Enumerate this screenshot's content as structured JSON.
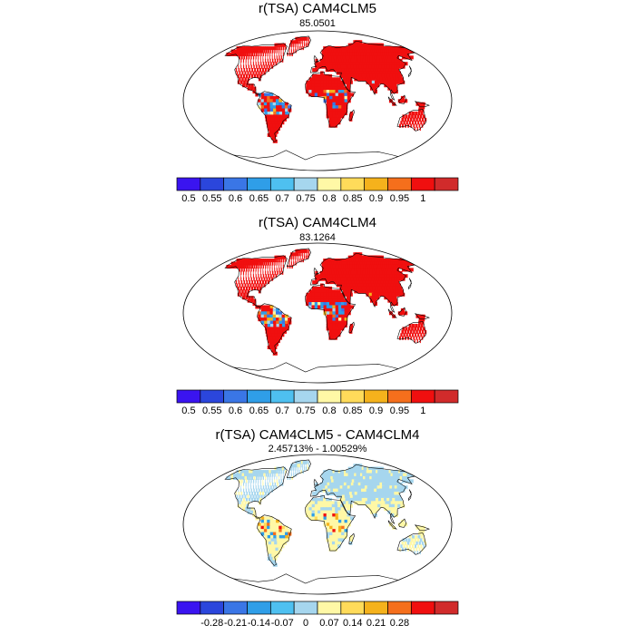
{
  "panels": [
    {
      "title": "r(TSA) CAM4CLM5",
      "subtitle": "85.0501",
      "colorbar": {
        "colors": [
          "#3a14f0",
          "#2b46dc",
          "#3a76e6",
          "#2f9ee8",
          "#4ec0f0",
          "#a6d6ee",
          "#fff8a6",
          "#ffdb5a",
          "#f5b21c",
          "#f56f1c",
          "#f00f0f",
          "#d12b2b"
        ],
        "labels": [
          "0.5",
          "0.55",
          "0.6",
          "0.65",
          "0.7",
          "0.75",
          "0.8",
          "0.85",
          "0.9",
          "0.95",
          "1"
        ]
      }
    },
    {
      "title": "r(TSA) CAM4CLM4",
      "subtitle": "83.1264",
      "colorbar": {
        "colors": [
          "#3a14f0",
          "#2b46dc",
          "#3a76e6",
          "#2f9ee8",
          "#4ec0f0",
          "#a6d6ee",
          "#fff8a6",
          "#ffdb5a",
          "#f5b21c",
          "#f56f1c",
          "#f00f0f",
          "#d12b2b"
        ],
        "labels": [
          "0.5",
          "0.55",
          "0.6",
          "0.65",
          "0.7",
          "0.75",
          "0.8",
          "0.85",
          "0.9",
          "0.95",
          "1"
        ]
      }
    },
    {
      "title": "r(TSA) CAM4CLM5 - CAM4CLM4",
      "subtitle": "2.45713% - 1.00529%",
      "colorbar": {
        "colors": [
          "#3a14f0",
          "#2b46dc",
          "#3a76e6",
          "#2f9ee8",
          "#4ec0f0",
          "#a6d6ee",
          "#fff8a6",
          "#ffdb5a",
          "#f5b21c",
          "#f56f1c",
          "#f00f0f",
          "#d12b2b"
        ],
        "labels": [
          "-0.28",
          "-0.21",
          "-0.14",
          "-0.07",
          "0",
          "0.07",
          "0.14",
          "0.21",
          "0.28"
        ]
      }
    }
  ],
  "land_colors": {
    "panel1_main": "#f00f0f",
    "panel2_main": "#f00f0f",
    "panel3_north": "#a6d6ee",
    "panel3_south": "#fff8a6"
  }
}
